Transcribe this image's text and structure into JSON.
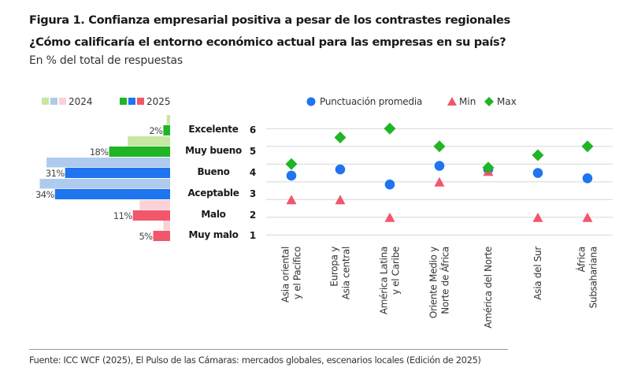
{
  "header": {
    "title": "Figura 1. Confianza empresarial positiva a pesar de los contrastes regionales",
    "subtitle": "¿Cómo calificaría el entorno económico actual para las empresas en su país?",
    "unit": "En % del total de respuestas"
  },
  "footer": {
    "source": "Fuente: ICC WCF (2025), El Pulso de las Cámaras: mercados globales, escenarios locales (Edición de 2025)"
  },
  "chart_data": [
    {
      "type": "bar",
      "orientation": "horizontal",
      "categories": [
        "Excelente",
        "Muy bueno",
        "Bueno",
        "Aceptable",
        "Malo",
        "Muy malo"
      ],
      "category_scores": [
        "6",
        "5",
        "4",
        "3",
        "2",
        "1"
      ],
      "series": [
        {
          "name": "2024",
          "values": [
            1,
            12.5,
            36.5,
            38.5,
            9,
            2
          ],
          "colors": [
            "#c6e8a2",
            "#c6e8a2",
            "#aecbee",
            "#aecbee",
            "#fad2d6",
            "#fad2d6"
          ]
        },
        {
          "name": "2025",
          "values": [
            2,
            18,
            31,
            34,
            11,
            5
          ],
          "colors": [
            "#1fb524",
            "#1fb524",
            "#1f74ef",
            "#1f74ef",
            "#f2566b",
            "#f2566b"
          ]
        }
      ],
      "data_labels": [
        "2%",
        "18%",
        "31%",
        "34%",
        "11%",
        "5%"
      ],
      "legend": [
        {
          "label": "2024",
          "swatches": [
            "#c6e8a2",
            "#aecbee",
            "#fad2d6"
          ]
        },
        {
          "label": "2025",
          "swatches": [
            "#1fb524",
            "#1f74ef",
            "#f2566b"
          ]
        }
      ],
      "legend_position": "top",
      "unit": "%"
    },
    {
      "type": "scatter",
      "categories": [
        [
          "Asia oriental",
          "y el Pacífico"
        ],
        [
          "Europa y",
          "Asia central"
        ],
        [
          "América Latina",
          "y el Caribe"
        ],
        [
          "Oriente Medio y",
          "Norte de África"
        ],
        [
          "América del Norte"
        ],
        [
          "Asia del Sur"
        ],
        [
          "África",
          "Subsahariana"
        ]
      ],
      "series": [
        {
          "name": "Punctuación promedia",
          "marker": "circle",
          "color": "#1f74ef",
          "values": [
            3.35,
            3.7,
            2.85,
            3.9,
            3.7,
            3.5,
            3.2
          ]
        },
        {
          "name": "Min",
          "marker": "triangle",
          "color": "#f2566b",
          "values": [
            2,
            2,
            1,
            3,
            3.6,
            1,
            1
          ]
        },
        {
          "name": "Max",
          "marker": "diamond",
          "color": "#1fb524",
          "values": [
            4,
            5.5,
            6,
            5,
            3.8,
            4.5,
            5
          ]
        }
      ],
      "ylim": [
        0,
        6
      ],
      "yticks": [
        "6",
        "5",
        "4",
        "3",
        "2",
        "1"
      ],
      "grid": true,
      "legend_position": "top"
    }
  ]
}
